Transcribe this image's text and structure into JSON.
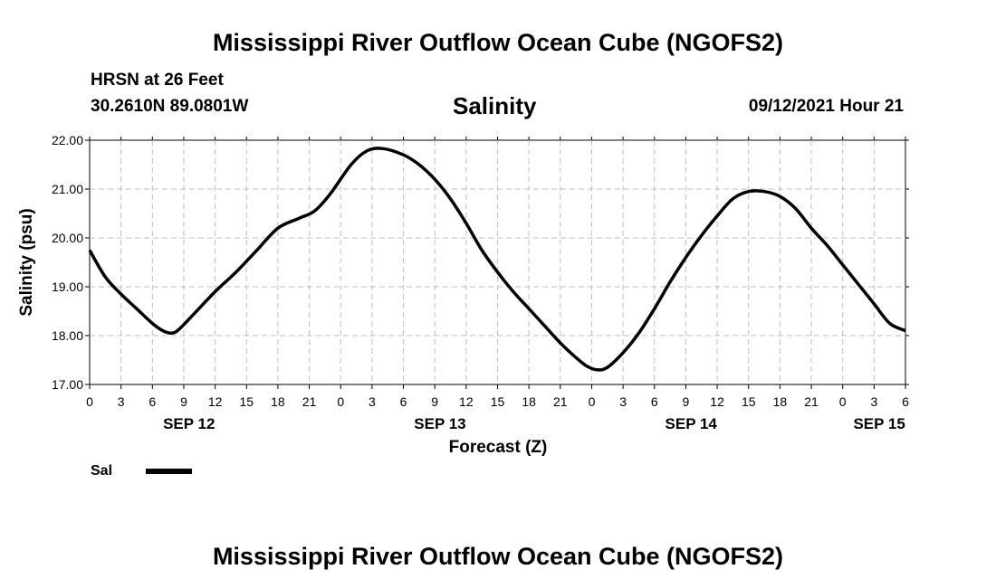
{
  "header": {
    "title": "Mississippi River Outflow Ocean Cube (NGOFS2)",
    "station": "HRSN at 26 Feet",
    "coords": "30.2610N  89.0801W",
    "variable": "Salinity",
    "datetime": "09/12/2021 Hour 21"
  },
  "footer": {
    "title": "Mississippi River Outflow Ocean Cube (NGOFS2)"
  },
  "chart_data": {
    "type": "line",
    "ylabel": "Salinity (psu)",
    "xlabel": "Forecast (Z)",
    "ylim": [
      17,
      22
    ],
    "yticks": [
      "17.00",
      "18.00",
      "19.00",
      "20.00",
      "21.00",
      "22.00"
    ],
    "xlim_hours": [
      0,
      78
    ],
    "xtick_labels": [
      "0",
      "3",
      "6",
      "9",
      "12",
      "15",
      "18",
      "21",
      "0",
      "3",
      "6",
      "9",
      "12",
      "15",
      "18",
      "21",
      "0",
      "3",
      "6",
      "9",
      "12",
      "15",
      "18",
      "21",
      "0",
      "3",
      "6"
    ],
    "day_labels": [
      {
        "label": "SEP 12",
        "hour": 9.5
      },
      {
        "label": "SEP 13",
        "hour": 33.5
      },
      {
        "label": "SEP 14",
        "hour": 57.5
      },
      {
        "label": "SEP 15",
        "hour": 75.5
      }
    ],
    "grid": true,
    "legend_position": "bottom-left",
    "line_color": "#000000",
    "series": [
      {
        "name": "Sal",
        "x": [
          0,
          1.5,
          3,
          4.5,
          6,
          7,
          7.8,
          8.5,
          10,
          12,
          14,
          16,
          18,
          20,
          21.5,
          23,
          25,
          26.5,
          28,
          30,
          31.5,
          33,
          34.5,
          36,
          37.5,
          39,
          40.5,
          42,
          43.5,
          45,
          46.5,
          47.5,
          48.5,
          49.5,
          51,
          52.5,
          54,
          55.5,
          57,
          58.5,
          60,
          61.5,
          63,
          64.5,
          66,
          67.5,
          69,
          70.5,
          72,
          73.5,
          75,
          76.5,
          78
        ],
        "y": [
          19.75,
          19.2,
          18.85,
          18.55,
          18.25,
          18.1,
          18.05,
          18.12,
          18.45,
          18.9,
          19.3,
          19.75,
          20.2,
          20.4,
          20.55,
          20.9,
          21.5,
          21.78,
          21.83,
          21.7,
          21.5,
          21.2,
          20.8,
          20.3,
          19.75,
          19.3,
          18.9,
          18.55,
          18.2,
          17.85,
          17.55,
          17.38,
          17.3,
          17.35,
          17.65,
          18.05,
          18.55,
          19.1,
          19.6,
          20.05,
          20.45,
          20.8,
          20.95,
          20.95,
          20.85,
          20.6,
          20.2,
          19.85,
          19.45,
          19.05,
          18.65,
          18.25,
          18.1
        ]
      }
    ]
  }
}
